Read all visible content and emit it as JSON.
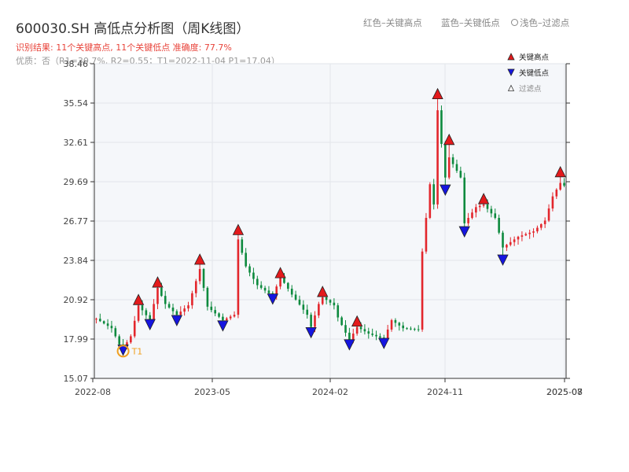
{
  "header": {
    "title": "600030.SH 高低点分析图（周K线图）",
    "result_line": "识别结果: 11个关键高点, 11个关键低点   准确度: 77.7%",
    "quality_line": "优质：否（R1=30.7%, R2=0.55；T1=2022-11-04 P1=17.04）"
  },
  "top_legend": {
    "red": "红色–关键高点",
    "blue": "蓝色–关键低点",
    "light": "浅色–过滤点"
  },
  "colors": {
    "up": "#e3262c",
    "down": "#0d8a3e",
    "high_marker": "#e31a1c",
    "low_marker": "#1515e0",
    "t1": "#f0a020",
    "plot_bg": "#f5f7fa"
  },
  "chart_data": {
    "type": "candlestick",
    "title": "600030.SH 高低点分析图（周K线图）",
    "ylim": [
      15.07,
      38.46
    ],
    "yticks": [
      "15.07",
      "17.99",
      "20.92",
      "23.84",
      "26.77",
      "29.69",
      "32.61",
      "35.54",
      "38.46"
    ],
    "xticks": [
      "2022-08",
      "2023-05",
      "2024-02",
      "2024-11",
      "2025-07",
      "2025-08"
    ],
    "grid": true,
    "legend": {
      "position": "top-right",
      "items": [
        {
          "label": "关键高点",
          "marker": "triangle-up",
          "color": "#e31a1c"
        },
        {
          "label": "关键低点",
          "marker": "triangle-down",
          "color": "#1515e0"
        },
        {
          "label": "过滤点",
          "marker": "triangle-up-hollow",
          "color": "#333333"
        }
      ]
    },
    "key_highs": [
      {
        "t": 11,
        "value": 20.9
      },
      {
        "t": 16,
        "value": 22.2
      },
      {
        "t": 27,
        "value": 23.9
      },
      {
        "t": 37,
        "value": 26.1
      },
      {
        "t": 48,
        "value": 22.9
      },
      {
        "t": 59,
        "value": 21.5
      },
      {
        "t": 68,
        "value": 19.3
      },
      {
        "t": 89,
        "value": 36.2
      },
      {
        "t": 92,
        "value": 32.8
      },
      {
        "t": 101,
        "value": 28.4
      },
      {
        "t": 121,
        "value": 30.4
      }
    ],
    "key_lows": [
      {
        "t": 7,
        "value": 17.2
      },
      {
        "t": 14,
        "value": 19.1
      },
      {
        "t": 21,
        "value": 19.4
      },
      {
        "t": 33,
        "value": 19.0
      },
      {
        "t": 46,
        "value": 21.0
      },
      {
        "t": 56,
        "value": 18.5
      },
      {
        "t": 66,
        "value": 17.6
      },
      {
        "t": 75,
        "value": 17.7
      },
      {
        "t": 91,
        "value": 29.1
      },
      {
        "t": 96,
        "value": 26.0
      },
      {
        "t": 106,
        "value": 23.9
      }
    ],
    "t1_annotation": {
      "label": "T1",
      "t": 7,
      "value": 17.04
    },
    "anchors": [
      [
        0,
        19.5
      ],
      [
        4,
        18.8
      ],
      [
        6,
        17.6
      ],
      [
        7,
        17.3
      ],
      [
        9,
        18.2
      ],
      [
        11,
        20.5
      ],
      [
        14,
        19.4
      ],
      [
        16,
        21.8
      ],
      [
        18,
        20.6
      ],
      [
        21,
        19.8
      ],
      [
        24,
        20.5
      ],
      [
        27,
        23.2
      ],
      [
        29,
        20.4
      ],
      [
        33,
        19.4
      ],
      [
        36,
        19.8
      ],
      [
        37,
        25.4
      ],
      [
        39,
        23.4
      ],
      [
        42,
        22.0
      ],
      [
        46,
        21.2
      ],
      [
        48,
        22.6
      ],
      [
        51,
        21.3
      ],
      [
        55,
        19.8
      ],
      [
        56,
        18.9
      ],
      [
        58,
        20.6
      ],
      [
        59,
        21.1
      ],
      [
        62,
        20.5
      ],
      [
        63,
        19.6
      ],
      [
        66,
        17.9
      ],
      [
        68,
        18.9
      ],
      [
        71,
        18.4
      ],
      [
        75,
        18.0
      ],
      [
        77,
        19.4
      ],
      [
        80,
        18.8
      ],
      [
        84,
        18.7
      ],
      [
        85,
        24.5
      ],
      [
        86,
        27.0
      ],
      [
        87,
        29.5
      ],
      [
        88,
        28.0
      ],
      [
        89,
        35.0
      ],
      [
        91,
        30.0
      ],
      [
        92,
        31.5
      ],
      [
        95,
        30.0
      ],
      [
        96,
        26.6
      ],
      [
        99,
        27.8
      ],
      [
        101,
        28.0
      ],
      [
        104,
        27.0
      ],
      [
        106,
        24.8
      ],
      [
        108,
        25.2
      ],
      [
        110,
        25.6
      ],
      [
        114,
        26.0
      ],
      [
        117,
        26.8
      ],
      [
        119,
        28.6
      ],
      [
        121,
        29.6
      ],
      [
        122,
        29.4
      ]
    ]
  }
}
